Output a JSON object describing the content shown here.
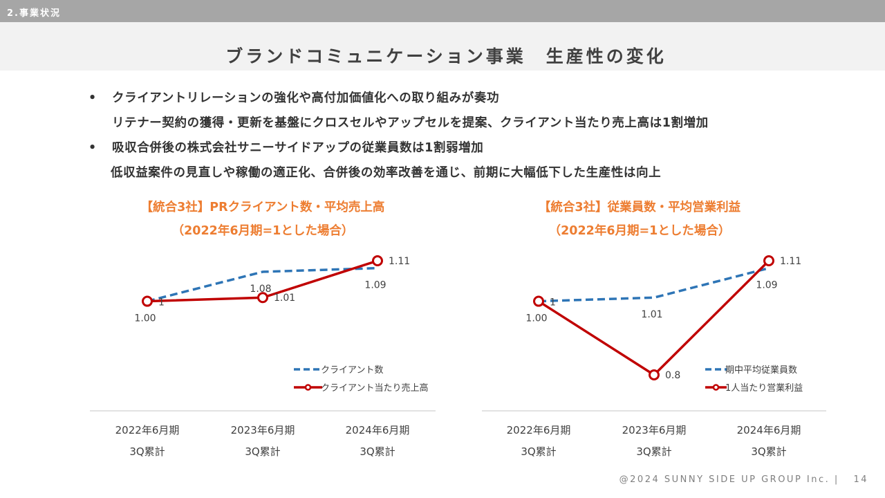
{
  "header": {
    "section": "2.事業状況",
    "title": "ブランドコミュニケーション事業　生産性の変化"
  },
  "bullets": [
    {
      "marker": "•",
      "text": "クライアントリレーションの強化や高付加価値化への取り組みが奏功",
      "sub": "リテナー契約の獲得・更新を基盤にクロスセルやアップセルを提案、クライアント当たり売上高は1割増加"
    },
    {
      "marker": "•",
      "text": "吸収合併後の株式会社サニーサイドアップの従業員数は1割弱増加",
      "sub": "低収益案件の見直しや稼働の適正化、合併後の効率改善を通じ、前期に大幅低下した生産性は向上"
    }
  ],
  "chart_data": [
    {
      "type": "line",
      "title": "【統合3社】PRクライアント数・平均売上高",
      "subtitle": "（2022年6月期=1とした場合）",
      "categories": [
        {
          "line1": "2022年6月期",
          "line2": "3Q累計"
        },
        {
          "line1": "2023年6月期",
          "line2": "3Q累計"
        },
        {
          "line1": "2024年6月期",
          "line2": "3Q累計"
        }
      ],
      "ylim": [
        0.7,
        1.15
      ],
      "series": [
        {
          "name": "クライアント数",
          "values": [
            1.0,
            1.08,
            1.09
          ],
          "labels": [
            "1.00",
            "1.08",
            "1.09"
          ],
          "label_pos": [
            "below",
            "below",
            "below"
          ],
          "color": "#2e75b6",
          "style": "dashed"
        },
        {
          "name": "クライアント当たり売上高",
          "values": [
            1.0,
            1.01,
            1.11
          ],
          "labels": [
            "1",
            "1.01",
            "1.11"
          ],
          "label_pos": [
            "right",
            "right",
            "right"
          ],
          "color": "#c00000",
          "style": "solid"
        }
      ]
    },
    {
      "type": "line",
      "title": "【統合3社】従業員数・平均営業利益",
      "subtitle": "（2022年6月期=1とした場合）",
      "categories": [
        {
          "line1": "2022年6月期",
          "line2": "3Q累計"
        },
        {
          "line1": "2023年6月期",
          "line2": "3Q累計"
        },
        {
          "line1": "2024年6月期",
          "line2": "3Q累計"
        }
      ],
      "ylim": [
        0.7,
        1.15
      ],
      "series": [
        {
          "name": "期中平均従業員数",
          "values": [
            1.0,
            1.01,
            1.09
          ],
          "labels": [
            "1.00",
            "1.01",
            "1.09"
          ],
          "label_pos": [
            "below",
            "below",
            "below"
          ],
          "color": "#2e75b6",
          "style": "dashed"
        },
        {
          "name": "1人当たり営業利益",
          "values": [
            1.0,
            0.8,
            1.11
          ],
          "labels": [
            "1",
            "0.8",
            "1.11"
          ],
          "label_pos": [
            "right",
            "right",
            "right"
          ],
          "color": "#c00000",
          "style": "solid"
        }
      ]
    }
  ],
  "footer": {
    "copyright": "@2024 SUNNY SIDE UP GROUP Inc.",
    "separator": "|",
    "page": "14"
  },
  "colors": {
    "accent": "#ed7d31",
    "blue": "#2e75b6",
    "red": "#c00000"
  }
}
